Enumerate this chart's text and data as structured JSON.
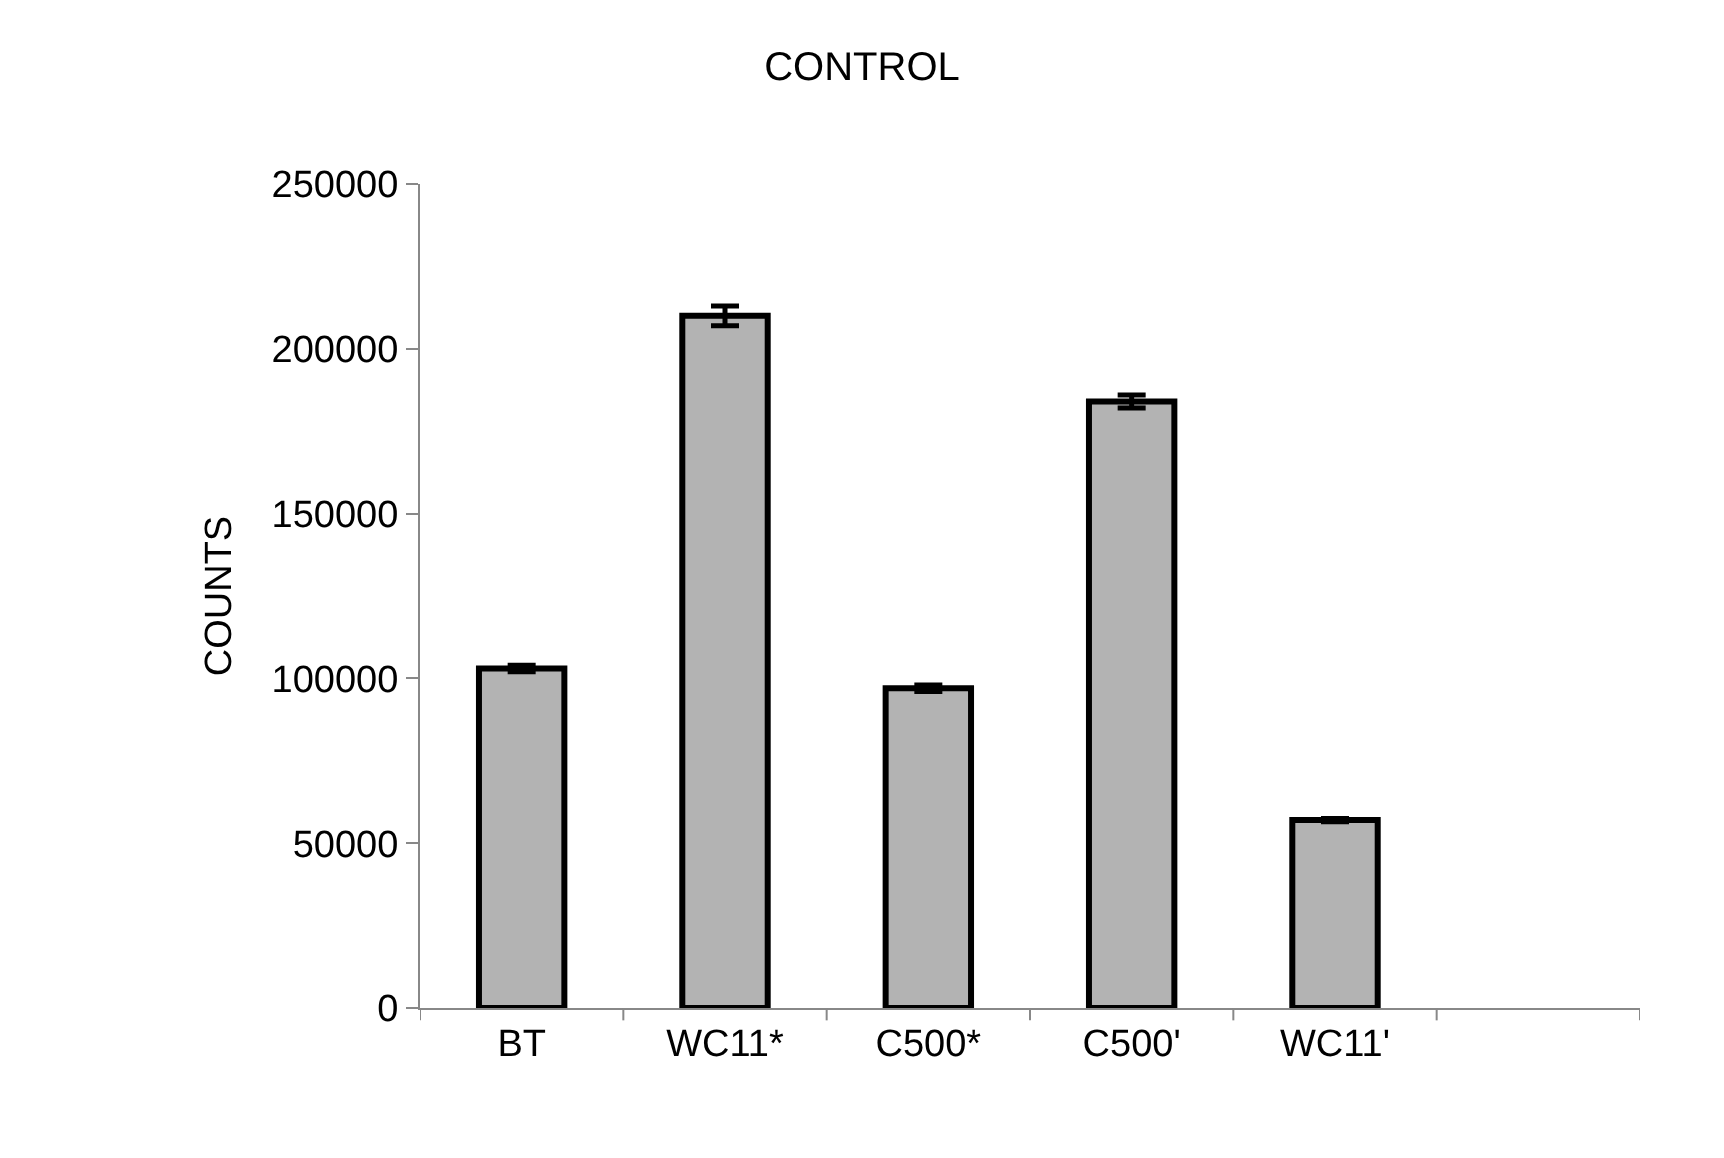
{
  "chart_data": {
    "type": "bar",
    "title": "CONTROL",
    "ylabel": "COUNTS",
    "categories": [
      "BT",
      "WC11*",
      "C500*",
      "C500'",
      "WC11'",
      null
    ],
    "values": [
      103000,
      210000,
      97000,
      184000,
      57000,
      null
    ],
    "errors": [
      1000,
      3000,
      1000,
      2000,
      500,
      null
    ],
    "color": "#b3b3b3",
    "ylim": [
      0,
      250000
    ],
    "yticks": [
      0,
      50000,
      100000,
      150000,
      200000,
      250000
    ],
    "grid": false
  }
}
